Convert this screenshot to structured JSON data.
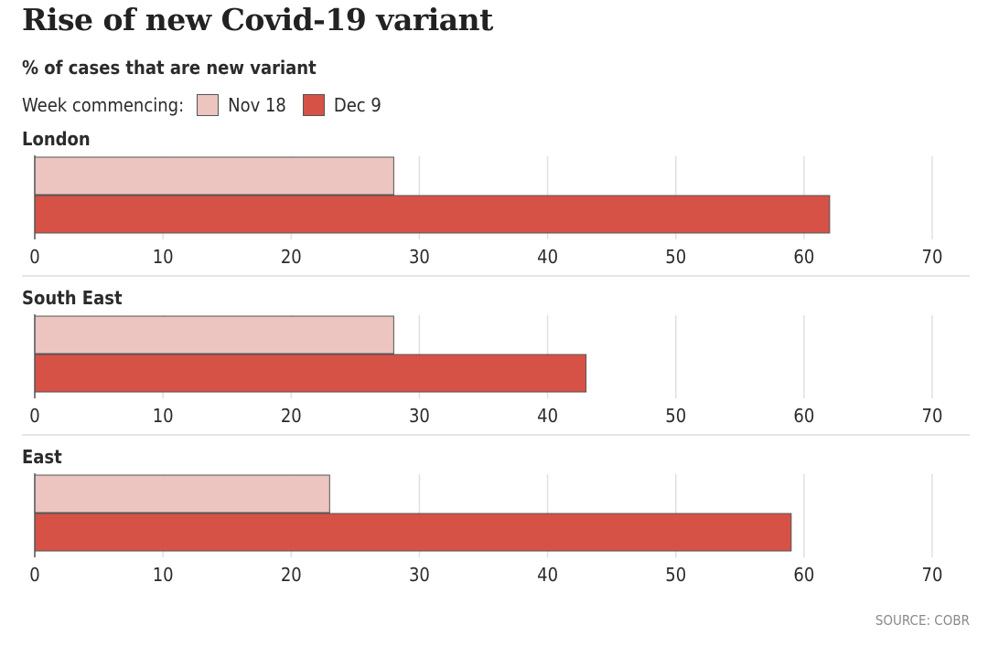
{
  "title": "Rise of new Covid-19 variant",
  "subtitle": "% of cases that are new variant",
  "legend": {
    "lead": "Week commencing:",
    "items": [
      {
        "label": "Nov 18",
        "color": "#ecc4c0"
      },
      {
        "label": "Dec 9",
        "color": "#d65246"
      }
    ]
  },
  "source": "SOURCE: COBR",
  "chart_data": {
    "type": "bar",
    "orientation": "horizontal",
    "title": "Rise of new Covid-19 variant",
    "subtitle": "% of cases that are new variant",
    "xlabel": "",
    "ylabel": "",
    "xlim": [
      0,
      70
    ],
    "ticks": [
      0,
      10,
      20,
      30,
      40,
      50,
      60,
      70
    ],
    "grid": true,
    "legend_position": "top-left",
    "panels": [
      {
        "region": "London",
        "series": [
          {
            "name": "Nov 18",
            "value": 28
          },
          {
            "name": "Dec 9",
            "value": 62
          }
        ]
      },
      {
        "region": "South East",
        "series": [
          {
            "name": "Nov 18",
            "value": 28
          },
          {
            "name": "Dec 9",
            "value": 43
          }
        ]
      },
      {
        "region": "East",
        "series": [
          {
            "name": "Nov 18",
            "value": 23
          },
          {
            "name": "Dec 9",
            "value": 59
          }
        ]
      }
    ],
    "colors": {
      "Nov 18": "#ecc4c0",
      "Dec 9": "#d65246"
    }
  }
}
